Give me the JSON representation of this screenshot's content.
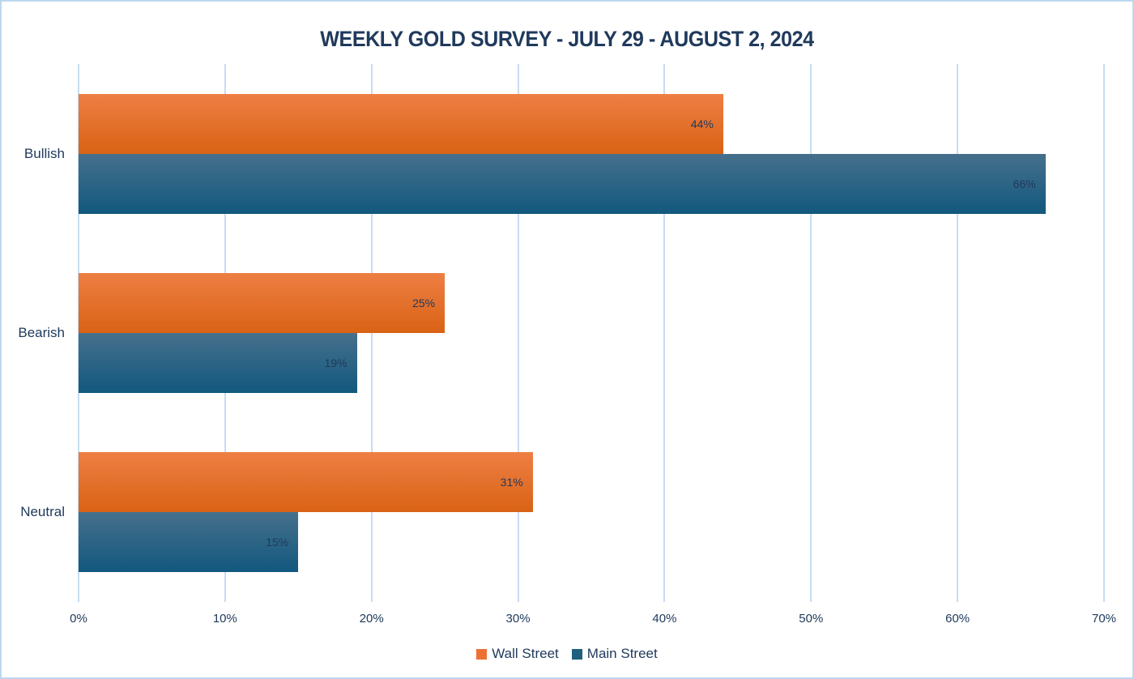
{
  "chart_data": {
    "type": "bar",
    "orientation": "horizontal",
    "title": "WEEKLY GOLD SURVEY - JULY 29 - AUGUST 2, 2024",
    "categories": [
      "Bullish",
      "Bearish",
      "Neutral"
    ],
    "series": [
      {
        "name": "Wall Street",
        "values": [
          44,
          25,
          31
        ],
        "gradient_top": "#ee7f44",
        "gradient_bottom": "#d96214",
        "legend_color": "#ed7135"
      },
      {
        "name": "Main Street",
        "values": [
          66,
          19,
          15
        ],
        "gradient_top": "#46708c",
        "gradient_bottom": "#12587e",
        "legend_color": "#20607f"
      }
    ],
    "value_suffix": "%",
    "xlim": [
      0,
      70
    ],
    "x_tick_labels": [
      "0%",
      "10%",
      "20%",
      "30%",
      "40%",
      "50%",
      "60%",
      "70%"
    ],
    "grid": "vertical-gridlines-on",
    "legend_position": "bottom"
  },
  "colors": {
    "text": "#203a5c",
    "grid": "#c7dcf2",
    "frame_border": "#bdd7ee",
    "background": "#ffffff"
  }
}
